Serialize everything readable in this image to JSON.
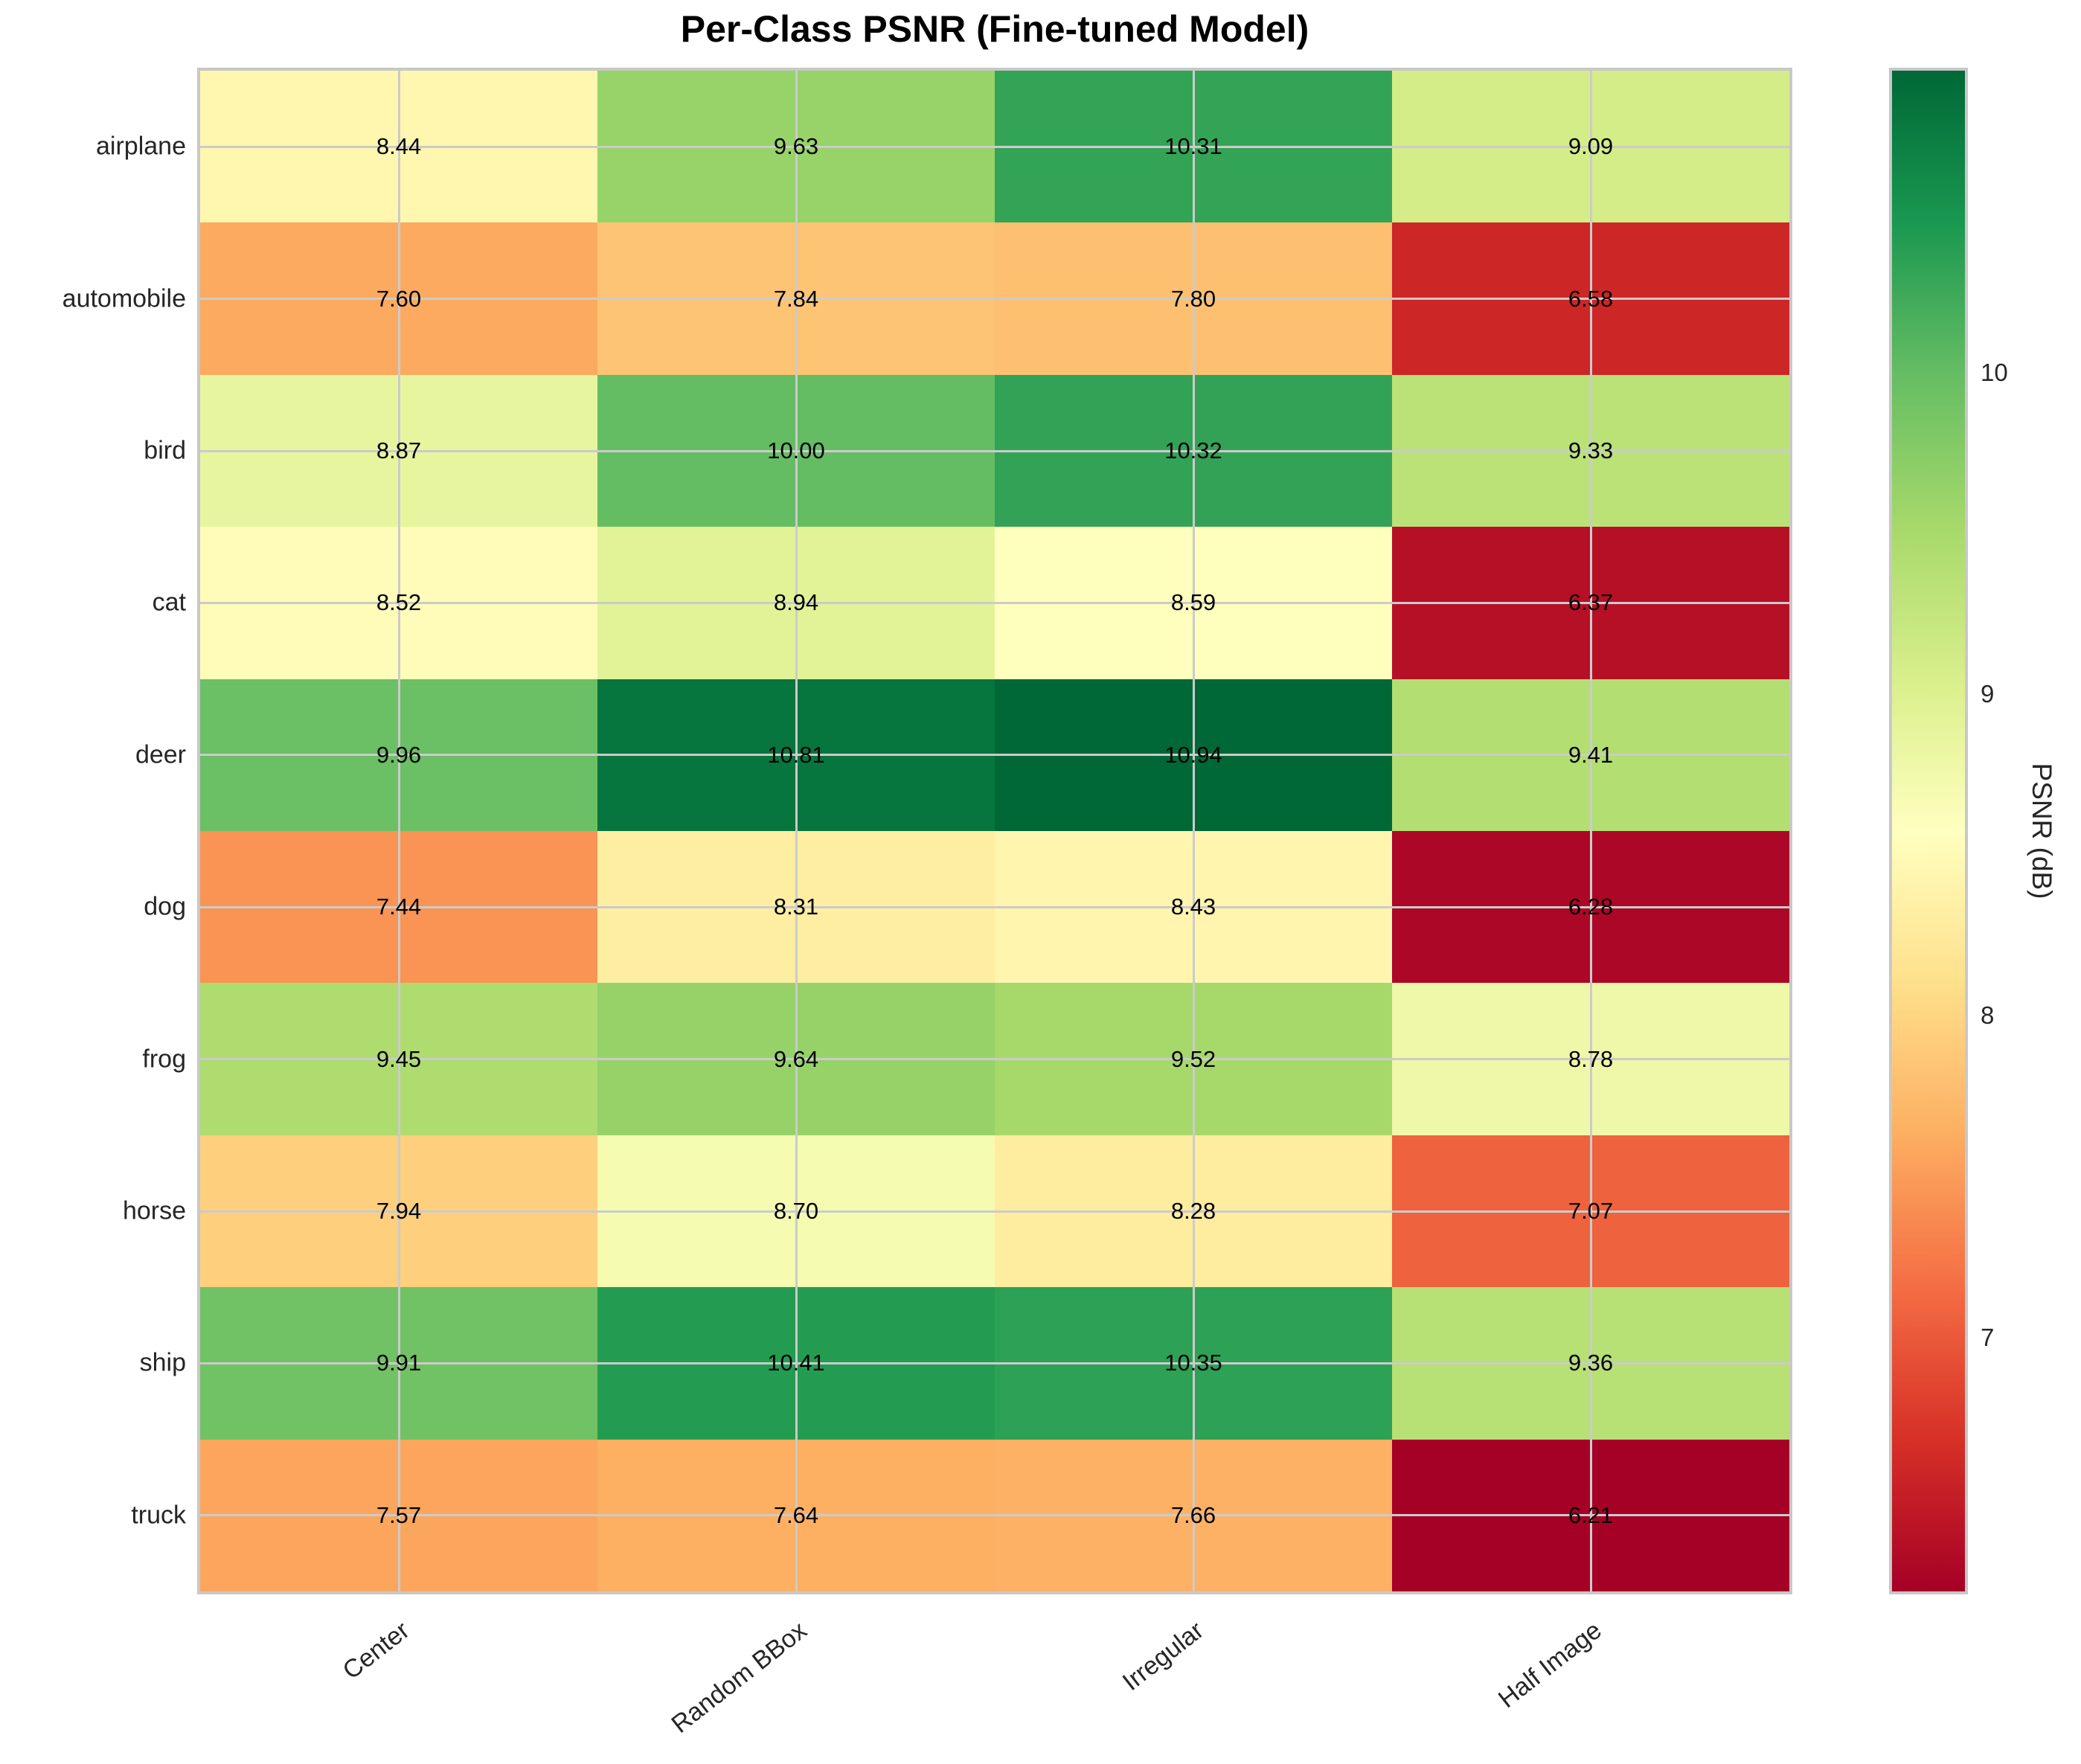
{
  "chart_data": {
    "type": "heatmap",
    "title": "Per-Class PSNR (Fine-tuned Model)",
    "rows": [
      "airplane",
      "automobile",
      "bird",
      "cat",
      "deer",
      "dog",
      "frog",
      "horse",
      "ship",
      "truck"
    ],
    "columns": [
      "Center",
      "Random BBox",
      "Irregular",
      "Half Image"
    ],
    "values": [
      [
        8.44,
        9.63,
        10.31,
        9.09
      ],
      [
        7.6,
        7.84,
        7.8,
        6.58
      ],
      [
        8.87,
        10.0,
        10.32,
        9.33
      ],
      [
        8.52,
        8.94,
        8.59,
        6.37
      ],
      [
        9.96,
        10.81,
        10.94,
        9.41
      ],
      [
        7.44,
        8.31,
        8.43,
        6.28
      ],
      [
        9.45,
        9.64,
        9.52,
        8.78
      ],
      [
        7.94,
        8.7,
        8.28,
        7.07
      ],
      [
        9.91,
        10.41,
        10.35,
        9.36
      ],
      [
        7.57,
        7.64,
        7.66,
        6.21
      ]
    ],
    "value_decimals": 2,
    "annotation_color": "#000000",
    "colorbar": {
      "label": "PSNR (dB)",
      "ticks": [
        7,
        8,
        9,
        10
      ],
      "vmin": 6.21,
      "vmax": 10.94
    },
    "colormap": {
      "name": "RdYlGn",
      "anchors": [
        "#a50026",
        "#d73027",
        "#f46d43",
        "#fdae61",
        "#fee08b",
        "#ffffbf",
        "#d9ef8b",
        "#a6d96a",
        "#66bd63",
        "#1a9850",
        "#006837"
      ]
    },
    "grid": true,
    "grid_color": "#cbcbcb",
    "x_tick_rotation_deg": 38
  }
}
